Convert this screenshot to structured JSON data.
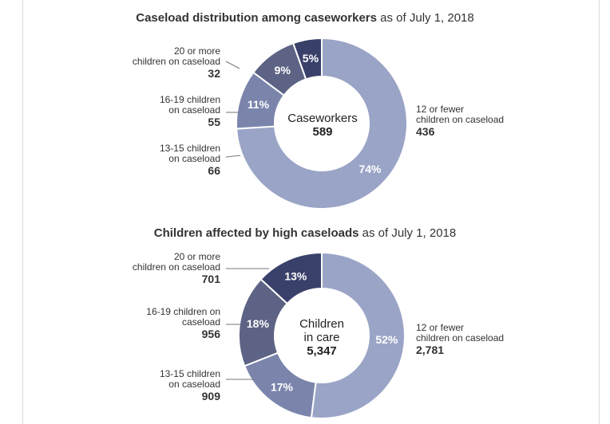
{
  "colors": {
    "light": "#9aa4c6",
    "medium": "#7b85ac",
    "dark": "#5c6384",
    "darkest": "#39406a",
    "connector": "#777777"
  },
  "chart_data": [
    {
      "type": "pie",
      "title_bold": "Caseload distribution among caseworkers",
      "title_rest": " as of July 1, 2018",
      "center_label": "Caseworkers",
      "center_value": "589",
      "slices": [
        {
          "label": "12 or fewer\nchildren on caseload",
          "value": 436,
          "value_label": "436",
          "percent": "74%",
          "color": "light"
        },
        {
          "label": "13-15 children\non caseload",
          "value": 66,
          "value_label": "66",
          "percent": "11%",
          "color": "medium"
        },
        {
          "label": "16-19 children\non caseload",
          "value": 55,
          "value_label": "55",
          "percent": "9%",
          "color": "dark"
        },
        {
          "label": "20 or more\nchildren on caseload",
          "value": 32,
          "value_label": "32",
          "percent": "5%",
          "color": "darkest"
        }
      ]
    },
    {
      "type": "pie",
      "title_bold": "Children affected by high caseloads",
      "title_rest": " as of July 1, 2018",
      "center_label": "Children\nin care",
      "center_value": "5,347",
      "slices": [
        {
          "label": "12 or fewer\nchildren on caseload",
          "value": 2781,
          "value_label": "2,781",
          "percent": "52%",
          "color": "light"
        },
        {
          "label": "13-15 children\non caseload",
          "value": 909,
          "value_label": "909",
          "percent": "17%",
          "color": "medium"
        },
        {
          "label": "16-19 children on\ncaseload",
          "value": 956,
          "value_label": "956",
          "percent": "18%",
          "color": "dark"
        },
        {
          "label": "20 or more\nchildren on caseload",
          "value": 701,
          "value_label": "701",
          "percent": "13%",
          "color": "darkest"
        }
      ]
    }
  ]
}
